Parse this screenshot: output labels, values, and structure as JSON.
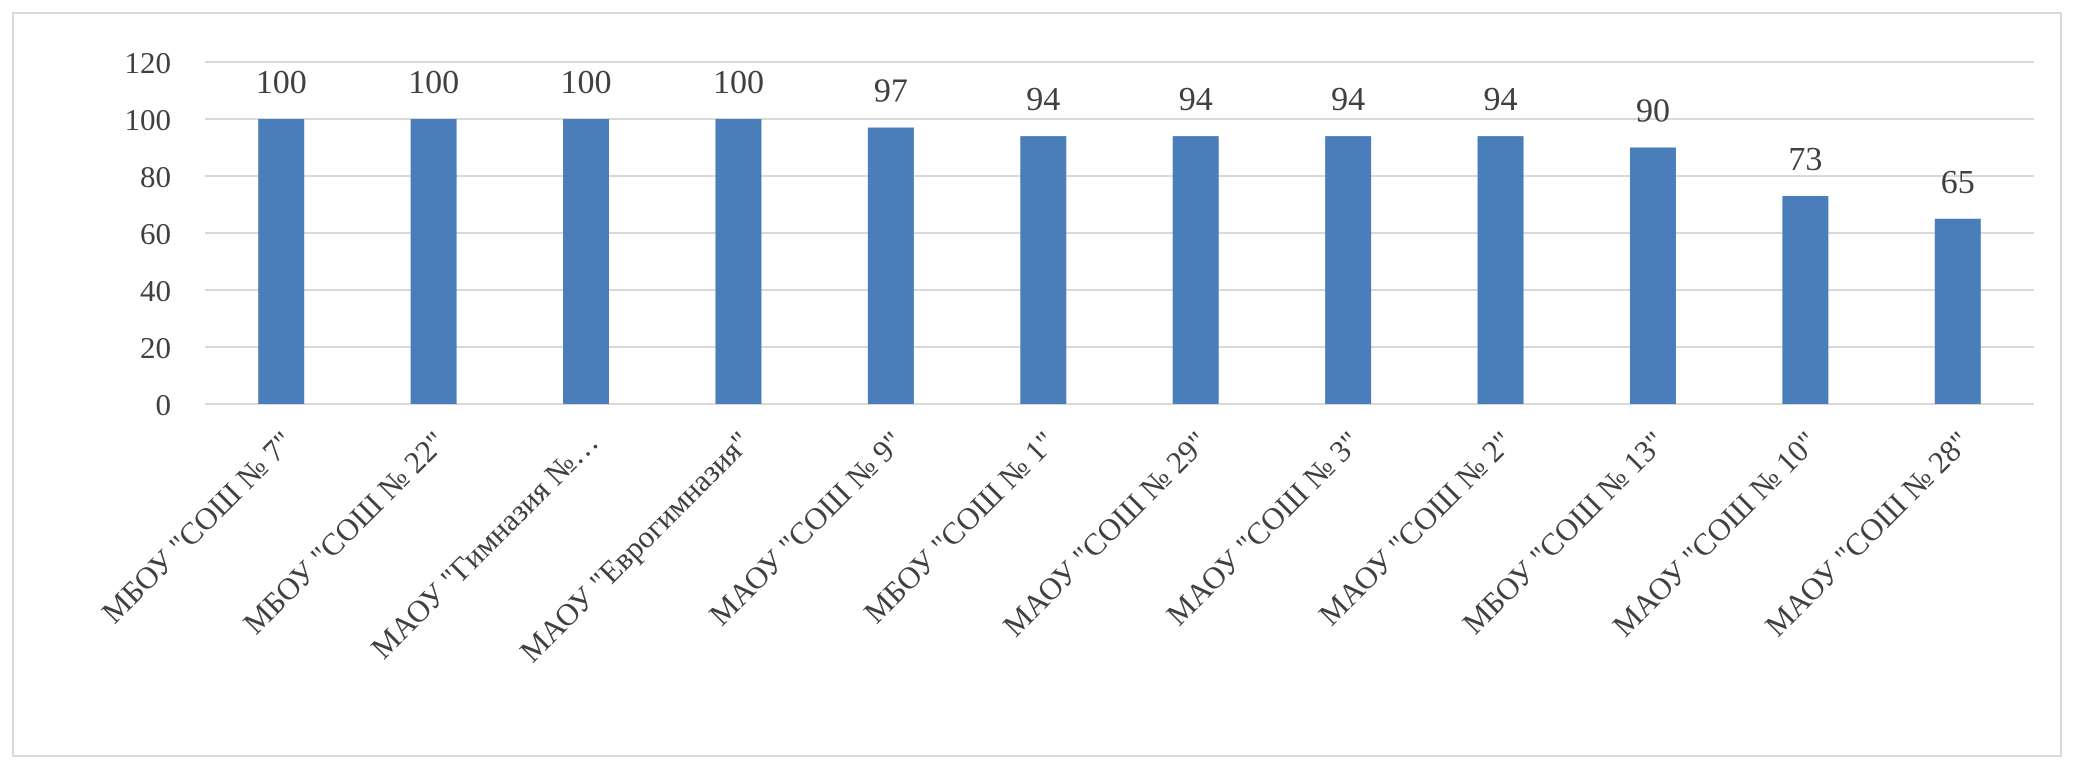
{
  "chart_data": {
    "type": "bar",
    "title": "",
    "xlabel": "",
    "ylabel": "",
    "categories": [
      "МБОУ \"СОШ № 7\"",
      "МБОУ \"СОШ № 22\"",
      "МАОУ \"Гимназия №…",
      "МАОУ \"Еврогимназия\"",
      "МАОУ \"СОШ № 9\"",
      "МБОУ \"СОШ № 1\"",
      "МАОУ \"СОШ № 29\"",
      "МАОУ \"СОШ № 3\"",
      "МАОУ \"СОШ № 2\"",
      "МБОУ \"СОШ № 13\"",
      "МАОУ \"СОШ № 10\"",
      "МАОУ \"СОШ № 28\""
    ],
    "values": [
      100,
      100,
      100,
      100,
      97,
      94,
      94,
      94,
      94,
      90,
      73,
      65
    ],
    "data_labels": [
      "100",
      "100",
      "100",
      "100",
      "97",
      "94",
      "94",
      "94",
      "94",
      "90",
      "73",
      "65"
    ],
    "ylim": [
      0,
      120
    ],
    "yticks": [
      0,
      20,
      40,
      60,
      80,
      100,
      120
    ],
    "grid": true,
    "legend": "none",
    "colors": {
      "bar": "#4a7ebb",
      "grid": "#d9d9d9",
      "text": "#404040"
    }
  }
}
